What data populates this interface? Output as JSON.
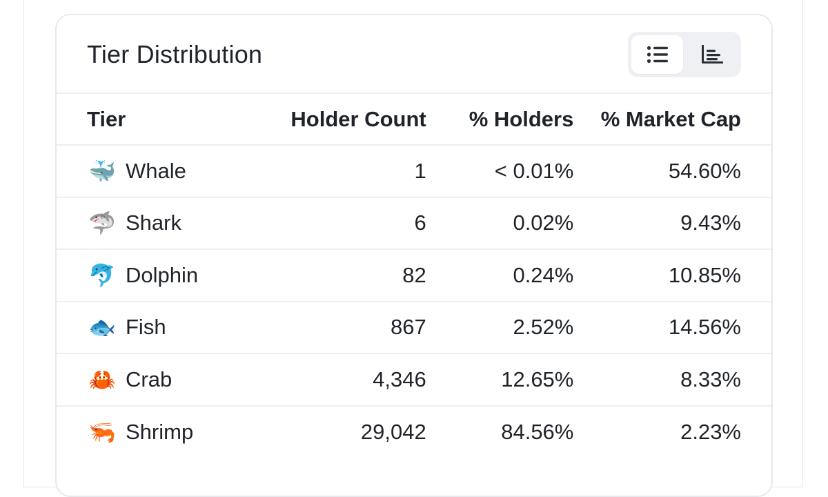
{
  "card": {
    "title": "Tier Distribution",
    "view_toggle": {
      "list_view_icon": "list-icon",
      "chart_view_icon": "bar-chart-icon",
      "active": "list"
    }
  },
  "table": {
    "headers": {
      "tier": "Tier",
      "holder_count": "Holder Count",
      "pct_holders": "% Holders",
      "pct_market_cap": "% Market Cap"
    },
    "rows": [
      {
        "icon": "🐳",
        "icon_name": "whale-icon",
        "tier": "Whale",
        "holder_count": "1",
        "pct_holders": "< 0.01%",
        "pct_market_cap": "54.60%"
      },
      {
        "icon": "🦈",
        "icon_name": "shark-icon",
        "tier": "Shark",
        "holder_count": "6",
        "pct_holders": "0.02%",
        "pct_market_cap": "9.43%"
      },
      {
        "icon": "🐬",
        "icon_name": "dolphin-icon",
        "tier": "Dolphin",
        "holder_count": "82",
        "pct_holders": "0.24%",
        "pct_market_cap": "10.85%"
      },
      {
        "icon": "🐟",
        "icon_name": "fish-icon",
        "tier": "Fish",
        "holder_count": "867",
        "pct_holders": "2.52%",
        "pct_market_cap": "14.56%"
      },
      {
        "icon": "🦀",
        "icon_name": "crab-icon",
        "tier": "Crab",
        "holder_count": "4,346",
        "pct_holders": "12.65%",
        "pct_market_cap": "8.33%"
      },
      {
        "icon": "🦐",
        "icon_name": "shrimp-icon",
        "tier": "Shrimp",
        "holder_count": "29,042",
        "pct_holders": "84.56%",
        "pct_market_cap": "2.23%"
      }
    ]
  }
}
